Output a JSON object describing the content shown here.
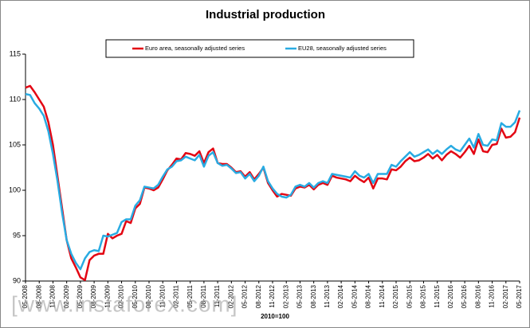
{
  "chart_data": {
    "type": "line",
    "title": "Industrial production",
    "note": "2010=100",
    "watermark": "[www.instaforex.com]",
    "categories": [
      "05-2008",
      null,
      null,
      "08-2008",
      null,
      null,
      "11-2008",
      null,
      null,
      "02-2009",
      null,
      null,
      "05-2009",
      null,
      null,
      "08-2009",
      null,
      null,
      "11-2009",
      null,
      null,
      "02-2010",
      null,
      null,
      "05-2010",
      null,
      null,
      "08-2010",
      null,
      null,
      "11-2010",
      null,
      null,
      "02-2011",
      null,
      null,
      "05-2011",
      null,
      null,
      "08-2011",
      null,
      null,
      "11-2011",
      null,
      null,
      "02-2012",
      null,
      null,
      "05-2012",
      null,
      null,
      "08-2012",
      null,
      null,
      "11-2012",
      null,
      null,
      "02-2013",
      null,
      null,
      "05-2013",
      null,
      null,
      "08-2013",
      null,
      null,
      "11-2013",
      null,
      null,
      "02-2014",
      null,
      null,
      "05-2014",
      null,
      null,
      "08-2014",
      null,
      null,
      "11-2014",
      null,
      null,
      "02-2015",
      null,
      null,
      "05-2015",
      null,
      null,
      "08-2015",
      null,
      null,
      "11-2015",
      null,
      null,
      "02-2016",
      null,
      null,
      "05-2016",
      null,
      null,
      "08-2016",
      null,
      null,
      "11-2016",
      null,
      null,
      "02-2017",
      null,
      null,
      "05-2017"
    ],
    "series": [
      {
        "name": "Euro area, seasonally adjusted series",
        "color": "#e30613",
        "values": [
          111.3,
          111.5,
          110.8,
          110.0,
          109.2,
          107.5,
          105.0,
          101.5,
          98.0,
          94.5,
          92.5,
          91.5,
          90.4,
          90.1,
          92.3,
          92.8,
          93.0,
          93.0,
          95.2,
          94.7,
          95.0,
          95.2,
          96.6,
          96.4,
          98.0,
          98.5,
          100.3,
          100.2,
          100.0,
          100.3,
          101.2,
          102.2,
          102.8,
          103.5,
          103.4,
          104.1,
          104.0,
          103.8,
          104.3,
          103.0,
          104.2,
          104.6,
          103.0,
          102.9,
          102.9,
          102.5,
          102.0,
          102.1,
          101.5,
          102.0,
          101.2,
          101.8,
          102.5,
          100.8,
          100.0,
          99.3,
          99.6,
          99.5,
          99.4,
          100.2,
          100.4,
          100.3,
          100.6,
          100.1,
          100.6,
          100.8,
          100.6,
          101.6,
          101.4,
          101.3,
          101.2,
          101.0,
          101.6,
          101.2,
          100.9,
          101.4,
          100.2,
          101.3,
          101.3,
          101.2,
          102.3,
          102.2,
          102.6,
          103.2,
          103.6,
          103.2,
          103.3,
          103.6,
          104.0,
          103.5,
          103.9,
          103.3,
          103.9,
          104.3,
          104.0,
          103.6,
          104.2,
          104.9,
          104.0,
          105.6,
          104.3,
          104.2,
          105.0,
          105.1,
          106.8,
          105.8,
          105.9,
          106.4,
          108.0
        ]
      },
      {
        "name": "EU28, seasonally adjusted series",
        "color": "#29abe2",
        "values": [
          110.6,
          110.5,
          109.6,
          109.0,
          108.2,
          106.5,
          104.0,
          101.0,
          97.5,
          94.5,
          93.0,
          92.0,
          91.3,
          92.5,
          93.2,
          93.4,
          93.3,
          95.0,
          94.9,
          95.1,
          95.3,
          96.5,
          96.8,
          96.8,
          98.3,
          98.9,
          100.4,
          100.3,
          100.2,
          100.6,
          101.5,
          102.3,
          102.6,
          103.2,
          103.3,
          103.7,
          103.5,
          103.3,
          103.9,
          102.6,
          103.8,
          104.2,
          103.0,
          102.7,
          102.8,
          102.4,
          101.9,
          102.0,
          101.3,
          101.8,
          101.0,
          101.6,
          102.6,
          101.0,
          100.2,
          99.6,
          99.3,
          99.2,
          99.5,
          100.4,
          100.6,
          100.4,
          100.8,
          100.3,
          100.8,
          101.0,
          100.8,
          101.8,
          101.7,
          101.6,
          101.5,
          101.4,
          102.1,
          101.6,
          101.4,
          101.8,
          100.8,
          101.8,
          101.8,
          101.8,
          102.8,
          102.6,
          103.2,
          103.7,
          104.2,
          103.7,
          103.9,
          104.2,
          104.5,
          104.0,
          104.4,
          104.0,
          104.5,
          104.9,
          104.5,
          104.3,
          105.0,
          105.7,
          104.7,
          106.2,
          105.0,
          104.9,
          105.6,
          105.5,
          107.4,
          107.0,
          107.0,
          107.5,
          108.8
        ]
      }
    ],
    "ylim": [
      90,
      115
    ],
    "yticks": [
      90,
      95,
      100,
      105,
      110,
      115
    ],
    "grid": false
  }
}
